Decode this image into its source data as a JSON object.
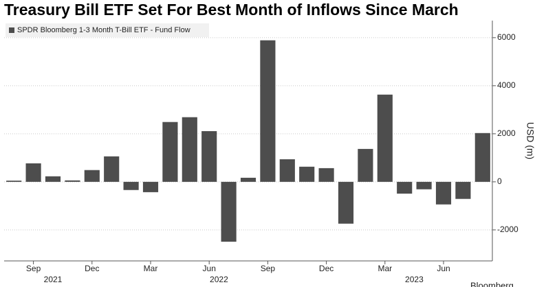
{
  "chart_data": {
    "type": "bar",
    "title": "Treasury Bill ETF Set For Best Month of Inflows Since March",
    "y_axis_label": "USD (m)",
    "source": "Bloomberg",
    "series": [
      {
        "name": "SPDR Bloomberg 1-3 Month T-Bill ETF - Fund Flow",
        "color": "#4d4d4d",
        "values": [
          50,
          770,
          230,
          60,
          490,
          1060,
          -340,
          -430,
          2490,
          2690,
          2110,
          -2490,
          170,
          5890,
          940,
          630,
          570,
          -1740,
          1370,
          3630,
          -490,
          -310,
          -940,
          -710,
          2030
        ]
      }
    ],
    "categories": [
      null,
      "Sep",
      null,
      null,
      "Dec",
      null,
      null,
      "Mar",
      null,
      null,
      "Jun",
      null,
      null,
      "Sep",
      null,
      null,
      "Dec",
      null,
      null,
      "Mar",
      null,
      null,
      "Jun",
      null,
      null
    ],
    "year_labels": [
      {
        "label": "2021",
        "span": [
          0,
          4
        ]
      },
      {
        "label": "2022",
        "span": [
          5,
          16
        ]
      },
      {
        "label": "2023",
        "span": [
          17,
          24
        ]
      }
    ],
    "ylim": [
      -3290,
      6710
    ],
    "yticks": [
      -2000,
      0,
      2000,
      4000,
      6000
    ],
    "grid": true,
    "legend": "top-left"
  }
}
